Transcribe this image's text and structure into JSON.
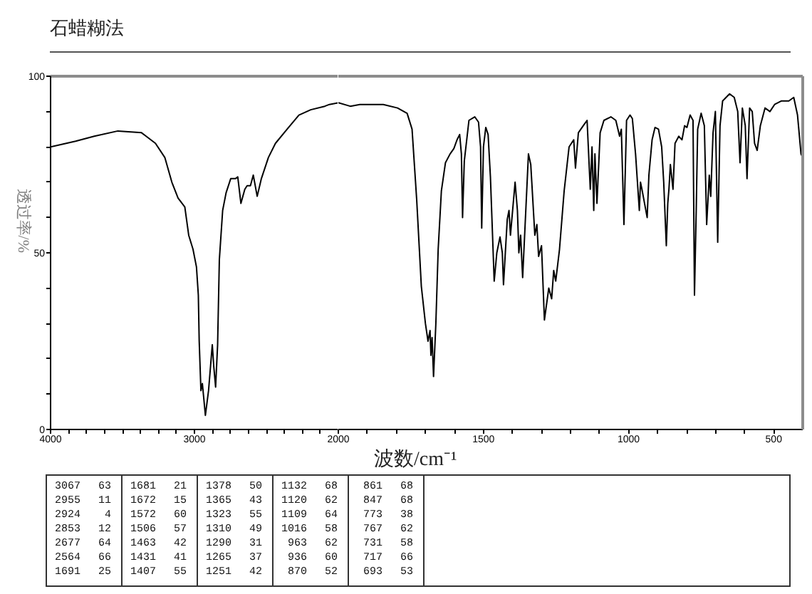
{
  "chart_data": [
    {
      "type": "line",
      "title": "石蜡糊法",
      "ylabel": "透过率/%",
      "x": [
        4000,
        3826,
        3696,
        3532,
        3368,
        3336,
        3271,
        3206,
        3157,
        3114,
        3067,
        3040,
        3010,
        2986,
        2973,
        2967,
        2955,
        2945,
        2924,
        2902,
        2888,
        2876,
        2866,
        2853,
        2839,
        2827,
        2804,
        2780,
        2748,
        2715,
        2699,
        2677,
        2650,
        2634,
        2611,
        2591,
        2564,
        2535,
        2486,
        2437,
        2356,
        2274,
        2192,
        2094,
        2062,
        2000
      ],
      "series": [
        {
          "color": "#000000",
          "values": [
            80,
            81.6,
            83,
            84.5,
            84,
            83,
            81,
            77,
            70,
            65.5,
            63,
            55,
            51,
            46,
            38,
            25,
            11,
            13,
            4,
            11,
            18,
            24,
            18,
            12,
            24,
            48,
            62,
            67,
            71,
            71,
            71.5,
            64,
            68,
            69,
            69,
            72,
            66,
            71,
            77,
            81,
            85,
            89,
            90.5,
            91.5,
            92,
            92.5
          ]
        }
      ],
      "xlim": [
        4000,
        2000
      ],
      "ylim": [
        0,
        100
      ],
      "xticks": [
        4000,
        {
          "value": 3875,
          "label": null
        },
        {
          "value": 3750,
          "label": null
        },
        {
          "value": 3625,
          "label": null
        },
        {
          "value": 3500,
          "label": null
        },
        {
          "value": 3375,
          "label": null
        },
        {
          "value": 3250,
          "label": null
        },
        {
          "value": 3125,
          "label": null
        },
        3000,
        {
          "value": 2875,
          "label": null
        },
        {
          "value": 2750,
          "label": null
        },
        {
          "value": 2625,
          "label": null
        },
        {
          "value": 2500,
          "label": null
        },
        {
          "value": 2375,
          "label": null
        },
        {
          "value": 2250,
          "label": null
        },
        {
          "value": 2125,
          "label": null
        }
      ],
      "yticks": [
        0,
        {
          "value": 10,
          "label": null
        },
        {
          "value": 20,
          "label": null
        },
        {
          "value": 30,
          "label": null
        },
        {
          "value": 40,
          "label": null
        },
        50,
        {
          "value": 60,
          "label": null
        },
        {
          "value": 70,
          "label": null
        },
        {
          "value": 80,
          "label": null
        },
        {
          "value": 90,
          "label": null
        },
        100
      ],
      "line_style": "solid",
      "annotations": [
        "3067",
        "63",
        "2955",
        "11",
        "2924",
        "4",
        "2853",
        "12",
        "2677",
        "64",
        "2564",
        "66",
        "1691",
        "25",
        "1681",
        "21",
        "1672",
        "15",
        "1572",
        "60",
        "1506",
        "57",
        "1463",
        "42",
        "1431",
        "41",
        "1407",
        "55",
        "1378",
        "50",
        "1365",
        "43",
        "1323",
        "55",
        "1310",
        "49",
        "1290",
        "31",
        "1265",
        "37",
        "1251",
        "42",
        "1132",
        "68",
        "1120",
        "62",
        "1109",
        "64",
        "1016",
        "58",
        "963",
        "62",
        "936",
        "60",
        "870",
        "52",
        "861",
        "68",
        "847",
        "68",
        "773",
        "38",
        "767",
        "62",
        "731",
        "58",
        "717",
        "66",
        "693",
        "53"
      ]
    },
    {
      "type": "line",
      "xlabel": "波数/cm⁻¹",
      "x": [
        2000,
        1959,
        1926,
        1845,
        1796,
        1763,
        1746,
        1730,
        1714,
        1700,
        1691,
        1684,
        1681,
        1677,
        1672,
        1664,
        1656,
        1645,
        1631,
        1615,
        1602,
        1591,
        1582,
        1576,
        1572,
        1566,
        1550,
        1530,
        1517,
        1510,
        1506,
        1500,
        1492,
        1484,
        1476,
        1463,
        1454,
        1443,
        1435,
        1431,
        1418,
        1412,
        1407,
        1391,
        1383,
        1378,
        1372,
        1365,
        1345,
        1337,
        1323,
        1316,
        1310,
        1300,
        1290,
        1275,
        1265,
        1258,
        1251,
        1238,
        1222,
        1205,
        1189,
        1183,
        1173,
        1156,
        1143,
        1132,
        1126,
        1120,
        1116,
        1109,
        1098,
        1085,
        1061,
        1044,
        1031,
        1025,
        1016,
        1007,
        995,
        987,
        976,
        963,
        959,
        954,
        936,
        930,
        919,
        909,
        897,
        886,
        879,
        870,
        865,
        861,
        856,
        847,
        840,
        827,
        816,
        807,
        799,
        788,
        778,
        773,
        767,
        762,
        750,
        739,
        731,
        722,
        717,
        709,
        701,
        693,
        685,
        676,
        652,
        636,
        624,
        616,
        608,
        598,
        592,
        583,
        574,
        566,
        557,
        546,
        530,
        513,
        497,
        473,
        448,
        431,
        418,
        406,
        400
      ],
      "series": [
        {
          "color": "#000000",
          "values": [
            92.5,
            91.5,
            92,
            92,
            91,
            89.5,
            85,
            65,
            40.5,
            30,
            25,
            28,
            21,
            26,
            15,
            30,
            51,
            67.5,
            75.5,
            78,
            79.5,
            82,
            83.5,
            78,
            60,
            76,
            87.5,
            88.5,
            87,
            80,
            57,
            80,
            85.5,
            83.5,
            71.5,
            42,
            50,
            54.5,
            50,
            41,
            59.5,
            62,
            55,
            70,
            62,
            50,
            55,
            43,
            78,
            75,
            55,
            58,
            49,
            52,
            31,
            40,
            37,
            45,
            42,
            51,
            67.5,
            80,
            82,
            74,
            84,
            86,
            87.5,
            68,
            80,
            62,
            78,
            64,
            84,
            87.5,
            88.5,
            87.5,
            83,
            85,
            58,
            87.5,
            89,
            88,
            78,
            62,
            70,
            68,
            60,
            72,
            82,
            85.5,
            85,
            80,
            70,
            52,
            64,
            68,
            75,
            68,
            81,
            83,
            82,
            86,
            85.5,
            89,
            87.5,
            38,
            62,
            85,
            89.5,
            86,
            58,
            72,
            66,
            84,
            90,
            53,
            86,
            93,
            95,
            94,
            90,
            75.5,
            91,
            86,
            71,
            91,
            90,
            81,
            79,
            86,
            91,
            90,
            92,
            93,
            93,
            94,
            89,
            78,
            77
          ]
        }
      ],
      "xlim": [
        2000,
        400
      ],
      "ylim": [
        0,
        100
      ],
      "xticks": [
        2000,
        {
          "value": 1900,
          "label": null
        },
        {
          "value": 1800,
          "label": null
        },
        {
          "value": 1700,
          "label": null
        },
        {
          "value": 1600,
          "label": null
        },
        1500,
        {
          "value": 1400,
          "label": null
        },
        {
          "value": 1300,
          "label": null
        },
        {
          "value": 1200,
          "label": null
        },
        {
          "value": 1100,
          "label": null
        },
        1000,
        {
          "value": 900,
          "label": null
        },
        {
          "value": 800,
          "label": null
        },
        {
          "value": 700,
          "label": null
        },
        {
          "value": 600,
          "label": null
        },
        500
      ],
      "tick_labels": "x",
      "line_style": "solid"
    }
  ]
}
